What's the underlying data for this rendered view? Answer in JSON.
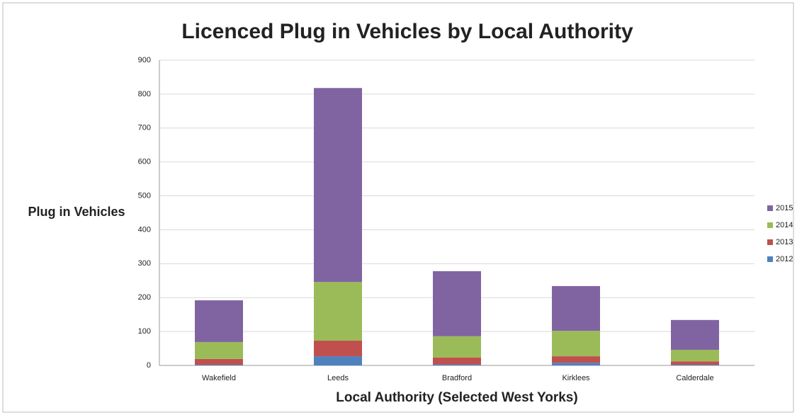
{
  "chart_data": {
    "type": "stacked_bar",
    "title": "Licenced Plug in Vehicles by Local Authority",
    "x_label": "Local Authority (Selected West Yorks)",
    "y_label": "Plug in Vehicles",
    "categories": [
      "Wakefield",
      "Leeds",
      "Bradford",
      "Kirklees",
      "Calderdale"
    ],
    "series": [
      {
        "name": "2012",
        "color": "#4f81bd",
        "values": [
          2,
          27,
          3,
          8,
          2
        ]
      },
      {
        "name": "2013",
        "color": "#c0504d",
        "values": [
          17,
          46,
          20,
          19,
          10
        ]
      },
      {
        "name": "2014",
        "color": "#9bbb59",
        "values": [
          50,
          173,
          63,
          75,
          34
        ]
      },
      {
        "name": "2015",
        "color": "#8064a2",
        "values": [
          123,
          572,
          192,
          132,
          88
        ]
      }
    ],
    "ylim": [
      0,
      900
    ],
    "yticks": [
      0,
      100,
      200,
      300,
      400,
      500,
      600,
      700,
      800,
      900
    ],
    "grid": true,
    "legend": "right"
  }
}
